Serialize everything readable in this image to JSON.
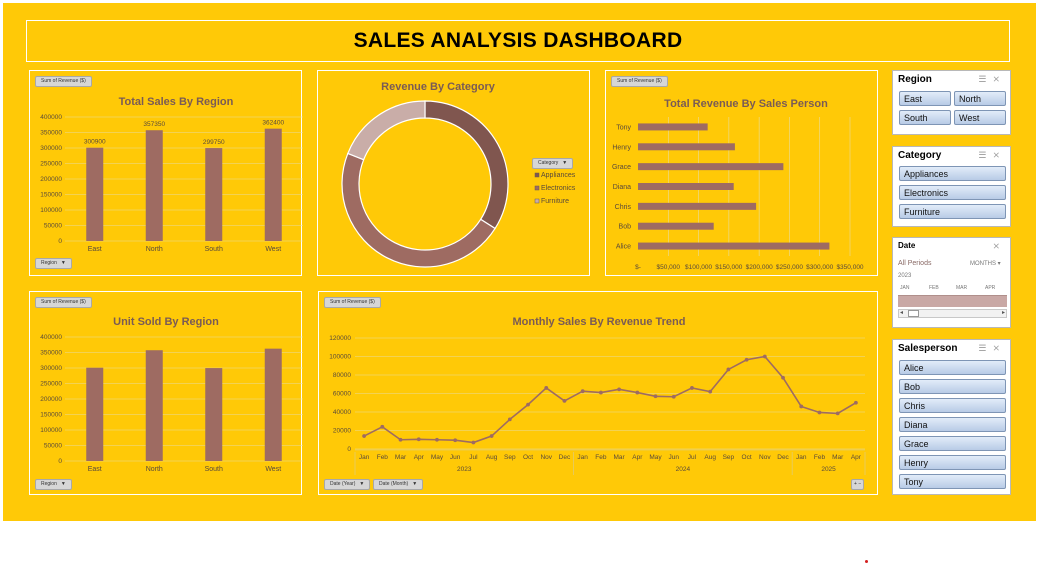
{
  "dashboard": {
    "title": "SALES ANALYSIS DASHBOARD"
  },
  "colors": {
    "background": "#FFC907",
    "bar": "#9E6B62",
    "donut": [
      "#80564F",
      "#9E6B62",
      "#C9ADA8"
    ],
    "line": "#9E6B62"
  },
  "field_buttons": {
    "sum_revenue": "Sum of Revenue ($)",
    "region": "Region",
    "category": "Category",
    "date_year": "Date (Year)",
    "date_month": "Date (Month)"
  },
  "chart_data": [
    {
      "type": "bar",
      "title": "Total Sales By Region",
      "categories": [
        "East",
        "North",
        "South",
        "West"
      ],
      "values": [
        300900,
        357350,
        299750,
        362400
      ],
      "value_labels": [
        "300900",
        "357350",
        "299750",
        "362400"
      ],
      "yticks": [
        "400000",
        "350000",
        "300000",
        "250000",
        "200000",
        "150000",
        "100000",
        "50000",
        "0"
      ],
      "ylim": [
        0,
        400000
      ]
    },
    {
      "type": "pie",
      "title": "Revenue By Category",
      "legend_title": "Category",
      "categories": [
        "Appliances",
        "Electronics",
        "Furniture"
      ],
      "values": [
        34,
        47,
        19
      ]
    },
    {
      "type": "bar",
      "orientation": "horizontal",
      "title": "Total Revenue By Sales Person",
      "categories": [
        "Tony",
        "Henry",
        "Grace",
        "Diana",
        "Chris",
        "Bob",
        "Alice"
      ],
      "values": [
        115000,
        160000,
        240000,
        158000,
        195000,
        125000,
        316000
      ],
      "xticks": [
        "$-",
        "$50,000",
        "$100,000",
        "$150,000",
        "$200,000",
        "$250,000",
        "$300,000",
        "$350,000"
      ],
      "xlim": [
        0,
        350000
      ]
    },
    {
      "type": "bar",
      "title": "Unit Sold By Region",
      "categories": [
        "East",
        "North",
        "South",
        "West"
      ],
      "values": [
        300900,
        357350,
        299750,
        362400
      ],
      "yticks": [
        "400000",
        "350000",
        "300000",
        "250000",
        "200000",
        "150000",
        "100000",
        "50000",
        "0"
      ],
      "ylim": [
        0,
        400000
      ]
    },
    {
      "type": "line",
      "title": "Monthly Sales By Revenue Trend",
      "x": [
        "Jan",
        "Feb",
        "Mar",
        "Apr",
        "May",
        "Jun",
        "Jul",
        "Aug",
        "Sep",
        "Oct",
        "Nov",
        "Dec",
        "Jan",
        "Feb",
        "Mar",
        "Apr",
        "May",
        "Jun",
        "Jul",
        "Aug",
        "Sep",
        "Oct",
        "Nov",
        "Dec",
        "Jan",
        "Feb",
        "Mar",
        "Apr"
      ],
      "years": [
        "2023",
        "2024",
        "2025"
      ],
      "values": [
        14000,
        24000,
        10000,
        10500,
        10000,
        9500,
        7000,
        14000,
        32000,
        48000,
        66000,
        52000,
        62500,
        61000,
        64500,
        61000,
        57000,
        56500,
        66000,
        62000,
        86000,
        96500,
        100000,
        77000,
        46000,
        39500,
        38500,
        50000
      ],
      "yticks": [
        "120000",
        "100000",
        "80000",
        "60000",
        "40000",
        "20000",
        "0"
      ],
      "ylim": [
        0,
        120000
      ]
    }
  ],
  "slicers": {
    "region": {
      "title": "Region",
      "items": [
        "East",
        "North",
        "South",
        "West"
      ]
    },
    "category": {
      "title": "Category",
      "items": [
        "Appliances",
        "Electronics",
        "Furniture"
      ]
    },
    "date": {
      "title": "Date",
      "period": "All Periods",
      "unit": "MONTHS",
      "year": "2023",
      "months": [
        "JAN",
        "FEB",
        "MAR",
        "APR"
      ]
    },
    "salesperson": {
      "title": "Salesperson",
      "items": [
        "Alice",
        "Bob",
        "Chris",
        "Diana",
        "Grace",
        "Henry",
        "Tony"
      ]
    }
  }
}
